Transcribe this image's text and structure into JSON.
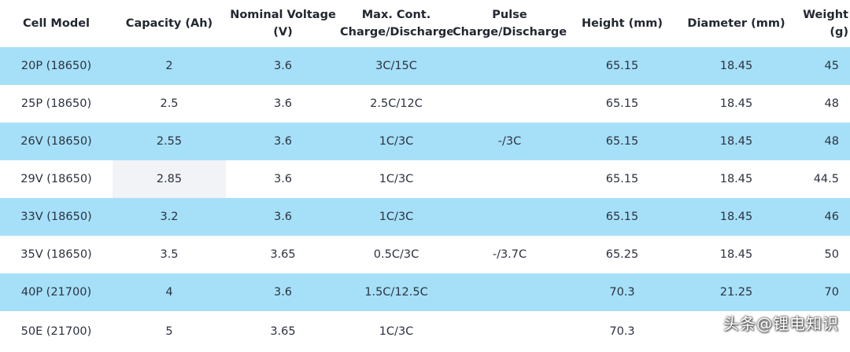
{
  "headers": [
    [
      "Cell Model"
    ],
    [
      "Capacity (Ah)"
    ],
    [
      "Nominal Voltage",
      "(V)"
    ],
    [
      "Max. Cont.",
      "Charge/Discharge"
    ],
    [
      "Pulse",
      "Charge/Discharge"
    ],
    [
      "Height (mm)"
    ],
    [
      "Diameter (mm)"
    ],
    [
      "Weight",
      "(g)"
    ]
  ],
  "rows": [
    [
      "20P (18650)",
      "2",
      "3.6",
      "3C/15C",
      "",
      "65.15",
      "18.45",
      "45"
    ],
    [
      "25P (18650)",
      "2.5",
      "3.6",
      "2.5C/12C",
      "",
      "65.15",
      "18.45",
      "48"
    ],
    [
      "26V (18650)",
      "2.55",
      "3.6",
      "1C/3C",
      "-/3C",
      "65.15",
      "18.45",
      "48"
    ],
    [
      "29V (18650)",
      "2.85",
      "3.6",
      "1C/3C",
      "",
      "65.15",
      "18.45",
      "44.5"
    ],
    [
      "33V (18650)",
      "3.2",
      "3.6",
      "1C/3C",
      "",
      "65.15",
      "18.45",
      "46"
    ],
    [
      "35V (18650)",
      "3.5",
      "3.65",
      "0.5C/3C",
      "-/3.7C",
      "65.25",
      "18.45",
      "50"
    ],
    [
      "40P (21700)",
      "4",
      "3.6",
      "1.5C/12.5C",
      "",
      "70.3",
      "21.25",
      "70"
    ],
    [
      "50E (21700)",
      "5",
      "3.65",
      "1C/3C",
      "",
      "70.3",
      "",
      ""
    ]
  ],
  "watermark": "头条@锂电知识",
  "colors": {
    "row_blue": "#a6e0f8",
    "row_white": "#ffffff",
    "text": "#2b3240"
  }
}
